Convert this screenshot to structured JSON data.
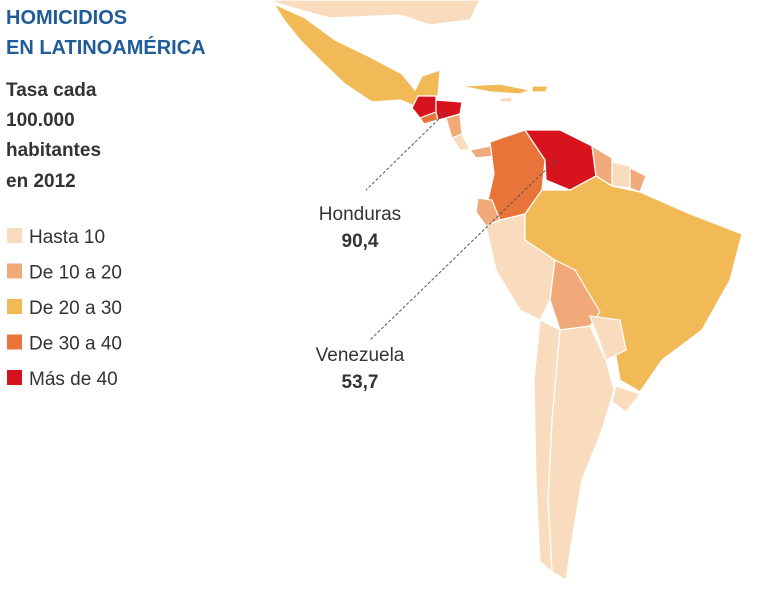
{
  "title": [
    "HOMICIDIOS",
    "EN LATINOAMÉRICA"
  ],
  "subtitle": [
    "Tasa cada",
    "100.000",
    "habitantes",
    "en 2012"
  ],
  "legend": [
    {
      "label": "Hasta 10",
      "color": "#f9dcbe"
    },
    {
      "label": "De 10 a 20",
      "color": "#f2a97a"
    },
    {
      "label": "De 20 a 30",
      "color": "#f2b957"
    },
    {
      "label": "De 30 a 40",
      "color": "#e8743a"
    },
    {
      "label": "Más de 40",
      "color": "#d7141e"
    }
  ],
  "callouts": [
    {
      "name": "Honduras",
      "value": 90.4,
      "value_label": "90,4"
    },
    {
      "name": "Venezuela",
      "value": 53.7,
      "value_label": "53,7"
    }
  ]
}
